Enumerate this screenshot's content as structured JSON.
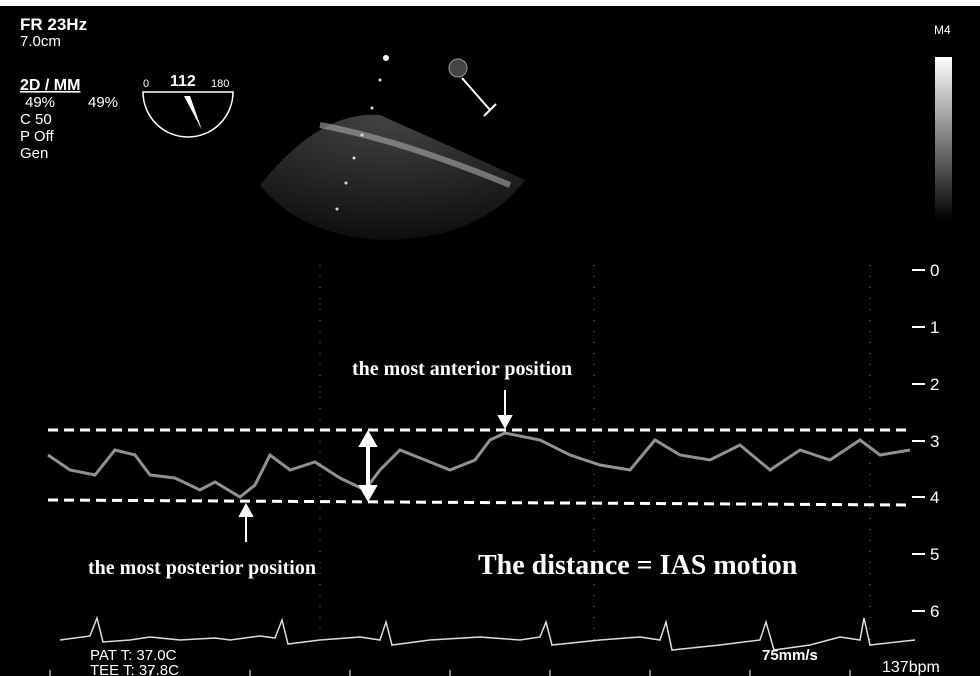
{
  "header": {
    "frame_rate": "FR 23Hz",
    "depth": "7.0cm",
    "mode": "2D / MM",
    "gain_2d": "49%",
    "gain_mm": "49%",
    "compress": "C 50",
    "power": "P Off",
    "preset": "Gen",
    "probe": "M4"
  },
  "protractor": {
    "min": "0",
    "angle": "112",
    "max": "180"
  },
  "depth_scale": [
    "0",
    "1",
    "2",
    "3",
    "4",
    "5",
    "6"
  ],
  "annotations": {
    "anterior": "the most anterior position",
    "posterior": "the most posterior position",
    "distance": "The distance = IAS motion"
  },
  "footer": {
    "pat_temp": "PAT T: 37.0C",
    "tee_temp": "TEE T: 37.8C",
    "sweep": "75mm/s",
    "heart_rate": "137bpm"
  }
}
